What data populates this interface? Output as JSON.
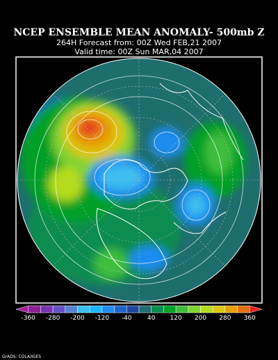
{
  "header": {
    "title": "NCEP ENSEMBLE MEAN ANOMALY- 500mb Z",
    "forecast": "264H Forecast from: 00Z Wed FEB,21 2007",
    "valid": "Valid time: 00Z Sun MAR,04 2007"
  },
  "colorbar": {
    "ticks": [
      "-360",
      "-280",
      "-200",
      "-120",
      "-40",
      "40",
      "120",
      "200",
      "280",
      "360"
    ],
    "colors": [
      "#a01ea0",
      "#8c1e96",
      "#7832b4",
      "#6450c8",
      "#5a82d2",
      "#3cbef0",
      "#1eb4ff",
      "#1e8cf0",
      "#1e64c8",
      "#1e46a0",
      "#1e6e6e",
      "#0a8c50",
      "#00a028",
      "#3cbe3c",
      "#82d232",
      "#b4dc1e",
      "#dcc814",
      "#e6a000",
      "#e66e14",
      "#e61e1e"
    ]
  },
  "footer": "GrADS: COLA/IGES"
}
